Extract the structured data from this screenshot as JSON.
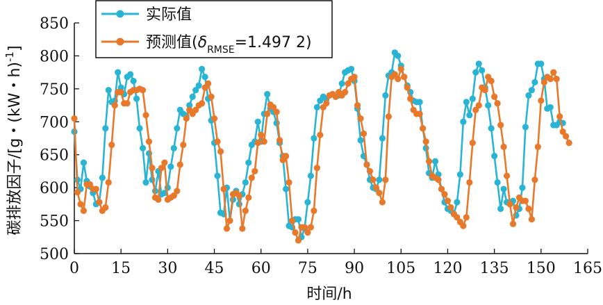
{
  "chart_data": {
    "type": "line",
    "xlabel": "时间/h",
    "ylabel": "碳排放因子/[g・(kW・h)",
    "ylabel_sup": "-1",
    "ylabel_close": "]",
    "xlim": [
      0,
      165
    ],
    "ylim": [
      500,
      850
    ],
    "xticks": [
      0,
      15,
      30,
      45,
      60,
      75,
      90,
      105,
      120,
      135,
      150,
      165
    ],
    "yticks": [
      500,
      550,
      600,
      650,
      700,
      750,
      800,
      850
    ],
    "legend_position": "top-left",
    "grid": false,
    "series": [
      {
        "name": "实际值",
        "color": "#2ab4d4",
        "values": [
          685,
          612,
          598,
          638,
          610,
          602,
          592,
          575,
          578,
          615,
          690,
          748,
          730,
          732,
          775,
          752,
          742,
          768,
          772,
          762,
          735,
          690,
          660,
          608,
          652,
          612,
          595,
          625,
          590,
          592,
          600,
          632,
          660,
          690,
          718,
          712,
          708,
          725,
          738,
          748,
          755,
          780,
          768,
          735,
          702,
          668,
          618,
          562,
          560,
          600,
          550,
          582,
          595,
          575,
          590,
          608,
          638,
          665,
          670,
          700,
          670,
          712,
          742,
          720,
          715,
          698,
          668,
          648,
          598,
          542,
          540,
          552,
          552,
          525,
          538,
          578,
          618,
          675,
          722,
          732,
          738,
          734,
          740,
          742,
          738,
          740,
          758,
          775,
          778,
          780,
          762,
          720,
          672,
          648,
          635,
          612,
          600,
          598,
          612,
          675,
          740,
          770,
          775,
          805,
          800,
          785,
          768,
          755,
          745,
          732,
          730,
          730,
          690,
          660,
          622,
          615,
          640,
          620,
          598,
          578,
          568,
          565,
          560,
          578,
          620,
          700,
          730,
          710,
          735,
          775,
          788,
          778,
          752,
          725,
          690,
          648,
          608,
          568,
          598,
          578,
          575,
          580,
          558,
          568,
          600,
          692,
          740,
          748,
          760,
          788,
          788,
          765,
          720,
          722,
          695,
          695,
          700,
          698
        ],
        "start": 0
      },
      {
        "name": "预测值(δRMSE=1.497 2)",
        "name_main": "预测值(",
        "name_delta": "δ",
        "name_sub": "RMSE",
        "name_rest": "=1.497 2)",
        "color": "#e8782a",
        "values": [
          705,
          593,
          575,
          565,
          605,
          605,
          598,
          598,
          578,
          565,
          570,
          608,
          665,
          725,
          745,
          745,
          728,
          728,
          745,
          748,
          748,
          750,
          748,
          710,
          670,
          630,
          585,
          582,
          630,
          638,
          582,
          585,
          588,
          595,
          635,
          665,
          705,
          718,
          712,
          718,
          725,
          728,
          752,
          758,
          738,
          705,
          670,
          655,
          598,
          538,
          550,
          590,
          592,
          588,
          538,
          565,
          585,
          615,
          625,
          668,
          680,
          670,
          712,
          726,
          722,
          715,
          672,
          642,
          648,
          608,
          550,
          532,
          520,
          540,
          540,
          532,
          540,
          565,
          630,
          680,
          722,
          728,
          740,
          742,
          738,
          745,
          740,
          745,
          758,
          765,
          768,
          725,
          705,
          682,
          635,
          625,
          612,
          600,
          592,
          578,
          612,
          708,
          768,
          772,
          765,
          780,
          768,
          752,
          735,
          718,
          712,
          712,
          690,
          670,
          640,
          618,
          615,
          612,
          598,
          590,
          580,
          570,
          560,
          555,
          548,
          542,
          555,
          608,
          668,
          718,
          725,
          752,
          748,
          768,
          762,
          738,
          728,
          695,
          662,
          618,
          575,
          545,
          570,
          585,
          580,
          580,
          568,
          552,
          612,
          662,
          732,
          760,
          768,
          765,
          775,
          765,
          708,
          685,
          678,
          668
        ]
      }
    ]
  }
}
